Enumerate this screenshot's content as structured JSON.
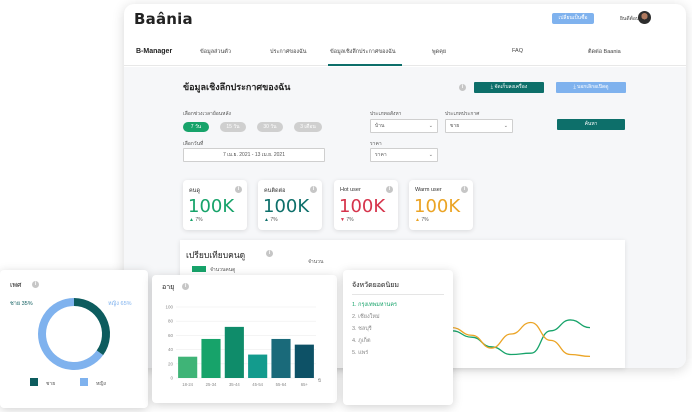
{
  "app": {
    "logo": "Baânia",
    "top_button": "เปลี่ยนเป็นซื้อ",
    "user_name": "ยินดีต้อนรับ"
  },
  "nav": {
    "brand": "B-Manager",
    "items": [
      "ข้อมูลส่วนตัว",
      "ประกาศของฉัน",
      "ข้อมูลเชิงลึกประกาศของฉัน",
      "พูดคุย",
      "FAQ",
      "ติดต่อ Baania"
    ]
  },
  "page": {
    "title": "ข้อมูลเชิงลึกประกาศของฉัน",
    "btn_primary": "จัดเก็บลงเครื่อง",
    "btn_secondary": "บอกเลิกอเปิดดู",
    "search_button": "ค้นหา"
  },
  "filters": {
    "range_label": "เลือกช่วงเวลาย้อนหลัง",
    "range_chips": [
      "7 วัน",
      "15 วัน",
      "30 วัน",
      "3 เดือน"
    ],
    "date_label": "เลือกวันที่",
    "date_value": "7 เม.ย. 2021 - 13 เม.ย. 2021",
    "property_type_label": "ประเภทอสังหา",
    "property_type_value": "บ้าน",
    "listing_type_label": "ประเภทประกาศ",
    "listing_type_value": "ขาย",
    "price_label": "ราคา",
    "price_value": "ราคา"
  },
  "stats": [
    {
      "title": "คนดู",
      "value": "100K",
      "pct": "7%",
      "color": "#17a36a",
      "arrow": "▲"
    },
    {
      "title": "คนติดต่อ",
      "value": "100K",
      "pct": "7%",
      "color": "#0d6f6a",
      "arrow": "▲"
    },
    {
      "title": "Hot user",
      "value": "100K",
      "pct": "7%",
      "color": "#d6344c",
      "arrow": "▼"
    },
    {
      "title": "Warm user",
      "value": "100K",
      "pct": "7%",
      "color": "#eba425",
      "arrow": "▲"
    }
  ],
  "compare": {
    "title": "เปรียบเทียบคนดู",
    "legend_label": "จำนวนคนดู",
    "axis_unit": "จำนวน"
  },
  "gender": {
    "title": "เพศ",
    "male_label": "ชาย",
    "male_pct": "35%",
    "female_label": "หญิง",
    "female_pct": "65%",
    "male_color": "#0d5c5e",
    "female_color": "#7fb2ee"
  },
  "age": {
    "title": "อายุ",
    "unit": "ปี"
  },
  "provinces": {
    "title": "จังหวัดยอดนิยม",
    "items": [
      "1. กรุงเทพมหานคร",
      "2. เชียงใหม่",
      "3. ชลบุรี",
      "4. ภูเก็ต",
      "5. แพร่"
    ]
  },
  "chart_data": [
    {
      "type": "pie",
      "title": "เพศ",
      "labels": [
        "ชาย",
        "หญิง"
      ],
      "values": [
        35,
        65
      ],
      "colors": [
        "#0d5c5e",
        "#7fb2ee"
      ]
    },
    {
      "type": "bar",
      "title": "อายุ",
      "categories": [
        "18-24",
        "25-34",
        "35-44",
        "45-54",
        "55-64",
        "65+"
      ],
      "values": [
        30,
        55,
        72,
        33,
        55,
        47
      ],
      "ylim": [
        0,
        100
      ],
      "yticks": [
        0,
        20,
        40,
        60,
        80,
        100
      ],
      "xlabel": "ปี",
      "colors": [
        "#3fb477",
        "#17a36a",
        "#0f8c6a",
        "#139b8d",
        "#1a6a7a",
        "#0d5166"
      ]
    },
    {
      "type": "line",
      "title": "เปรียบเทียบคนดู",
      "series": [
        {
          "name": "จำนวนคนดู",
          "values": [
            55,
            45,
            30,
            18,
            20,
            55,
            72,
            60
          ],
          "color": "#17a36a"
        },
        {
          "values": [
            60,
            48,
            28,
            50,
            68,
            40,
            18,
            15
          ],
          "color": "#eba425"
        }
      ]
    }
  ]
}
